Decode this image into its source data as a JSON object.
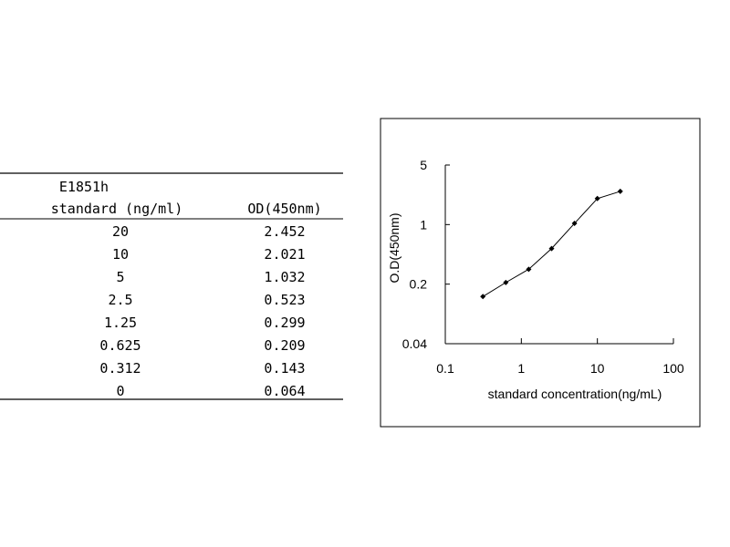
{
  "table": {
    "header": [
      [
        "E1851h",
        "standard (ng/ml)"
      ],
      [
        "OD(450nm)"
      ]
    ],
    "rows": [
      [
        "20",
        "2.452"
      ],
      [
        "10",
        "2.021"
      ],
      [
        "5",
        "1.032"
      ],
      [
        "2.5",
        "0.523"
      ],
      [
        "1.25",
        "0.299"
      ],
      [
        "0.625",
        "0.209"
      ],
      [
        "0.312",
        "0.143"
      ],
      [
        "0",
        "0.064"
      ]
    ]
  },
  "chart_data": {
    "type": "line",
    "x_label": "standard concentration(ng/mL)",
    "y_label": "O.D(450nm)",
    "x": [
      0.312,
      0.625,
      1.25,
      2.5,
      5,
      10,
      20
    ],
    "values": [
      0.143,
      0.209,
      0.299,
      0.523,
      1.032,
      2.021,
      2.452
    ],
    "color": "#000000",
    "xscale": "log",
    "yscale": "log",
    "xlim": [
      0.1,
      100
    ],
    "xticks": [
      0.1,
      1,
      10,
      100
    ],
    "ylim": [
      0.04,
      5
    ],
    "yticks": [
      0.04,
      0.2,
      1,
      5
    ]
  }
}
